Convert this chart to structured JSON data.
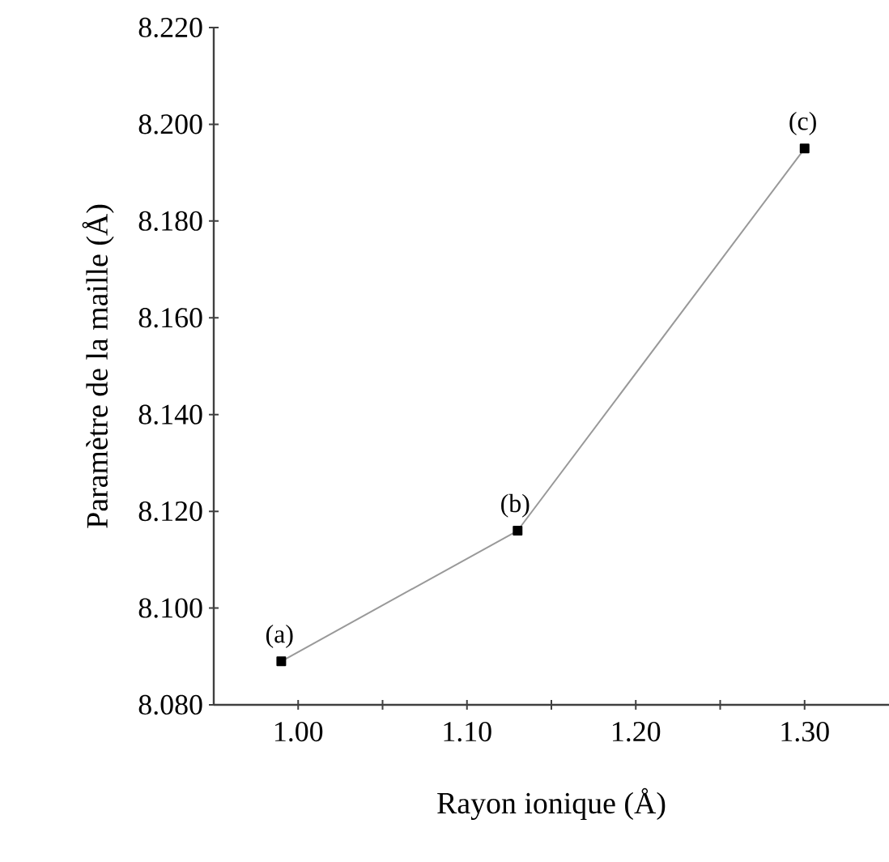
{
  "chart_data": {
    "type": "line",
    "xlabel": "Rayon ionique (Å)",
    "ylabel": "Paramètre de la maille (Å)",
    "x": [
      0.99,
      1.13,
      1.3
    ],
    "series": [
      {
        "color": "#999999",
        "values": [
          8.089,
          8.116,
          8.195
        ]
      }
    ],
    "marker": "square",
    "line_style": "solid",
    "xlim": [
      0.95,
      1.35
    ],
    "ylim": [
      8.08,
      8.22
    ],
    "xticks": [
      {
        "value": 1.0,
        "label": "1.00"
      },
      {
        "value": 1.05,
        "label": null
      },
      {
        "value": 1.1,
        "label": "1.10"
      },
      {
        "value": 1.15,
        "label": null
      },
      {
        "value": 1.2,
        "label": "1.20"
      },
      {
        "value": 1.25,
        "label": null
      },
      {
        "value": 1.3,
        "label": "1.30"
      }
    ],
    "yticks": [
      {
        "value": 8.08,
        "label": "8.080"
      },
      {
        "value": 8.1,
        "label": "8.100"
      },
      {
        "value": 8.12,
        "label": "8.120"
      },
      {
        "value": 8.14,
        "label": "8.140"
      },
      {
        "value": 8.16,
        "label": "8.160"
      },
      {
        "value": 8.18,
        "label": "8.180"
      },
      {
        "value": 8.2,
        "label": "8.200"
      },
      {
        "value": 8.22,
        "label": "8.220"
      }
    ],
    "annotations": [
      {
        "text": "(a)",
        "x": 0.99,
        "y": 8.089
      },
      {
        "text": "(b)",
        "x": 1.13,
        "y": 8.116
      },
      {
        "text": "(c)",
        "x": 1.3,
        "y": 8.195
      }
    ]
  }
}
